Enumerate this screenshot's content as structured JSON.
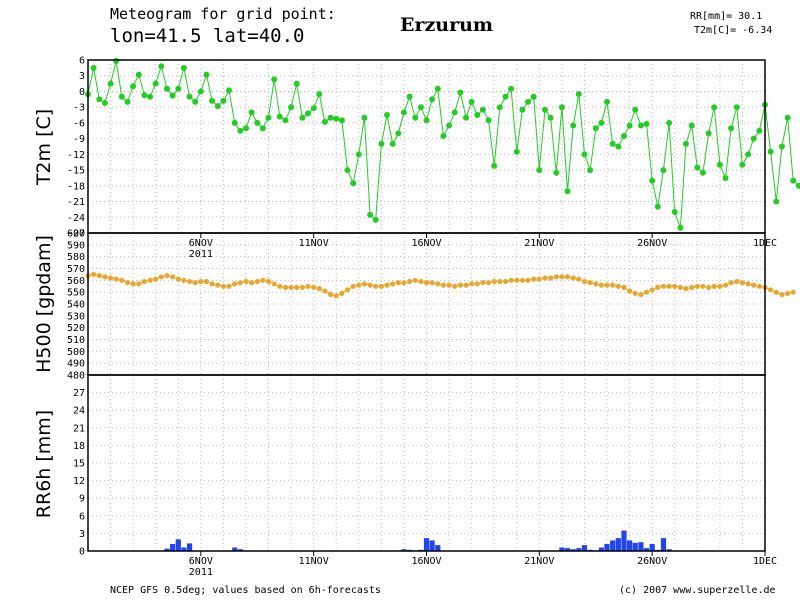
{
  "header": {
    "line1": "Meteogram for grid point:",
    "line2": "lon=41.5 lat=40.0",
    "city": "Erzurum",
    "rr_summary": "RR[mm]= 30.1",
    "t2m_summary": "T2m[C]= -6.34"
  },
  "footer": {
    "left": "NCEP GFS 0.5deg; values based on 6h-forecasts",
    "right": "(c) 2007 www.superzelle.de"
  },
  "colors": {
    "t2m": "#22cc22",
    "h500": "#e8a830",
    "rr": "#2244ee",
    "grid": "#bbbbbb"
  },
  "x_axis": {
    "start_day": 1,
    "end_day": 31,
    "ticks": [
      {
        "day": 6,
        "label": "6NOV",
        "sublabel": "2011"
      },
      {
        "day": 11,
        "label": "11NOV",
        "sublabel": ""
      },
      {
        "day": 16,
        "label": "16NOV",
        "sublabel": ""
      },
      {
        "day": 21,
        "label": "21NOV",
        "sublabel": ""
      },
      {
        "day": 26,
        "label": "26NOV",
        "sublabel": ""
      },
      {
        "day": 31,
        "label": "1DEC",
        "sublabel": ""
      }
    ],
    "bottom_ticks": [
      {
        "day": 6,
        "label": "6NOV",
        "sublabel": "2011"
      },
      {
        "day": 11,
        "label": "11NOV",
        "sublabel": ""
      },
      {
        "day": 16,
        "label": "16NOV",
        "sublabel": ""
      },
      {
        "day": 21,
        "label": "21NOV",
        "sublabel": ""
      },
      {
        "day": 26,
        "label": "26NOV",
        "sublabel": ""
      },
      {
        "day": 31,
        "label": "1DEC",
        "sublabel": ""
      }
    ]
  },
  "chart_data": [
    {
      "type": "line",
      "ylabel": "T2m [C]",
      "ylim": [
        -27,
        6
      ],
      "yticks": [
        6,
        3,
        0,
        -3,
        -6,
        -9,
        -12,
        -15,
        -18,
        -21,
        -24,
        -27
      ],
      "ytick_labels": [
        "6",
        "3",
        "0",
        "-3",
        "-6",
        "-9",
        "-12",
        "-15",
        "-18",
        "-21",
        "-24",
        "-27"
      ],
      "grid": true,
      "x_start_day": 1,
      "x_step_days": 0.25,
      "values": [
        -0.5,
        4.5,
        -1.5,
        -2.2,
        1.5,
        5.8,
        -1.0,
        -2.0,
        1.0,
        3.2,
        -0.7,
        -1.0,
        1.5,
        4.8,
        0.5,
        -0.8,
        0.5,
        4.5,
        -1.0,
        -2.0,
        0.0,
        3.2,
        -1.8,
        -2.8,
        -1.8,
        0.2,
        -6.0,
        -7.5,
        -7.0,
        -4.0,
        -6.0,
        -7.0,
        -5.0,
        2.3,
        -4.8,
        -5.5,
        -3.0,
        1.5,
        -5.0,
        -4.2,
        -3.2,
        -0.5,
        -5.8,
        -5.0,
        -5.2,
        -5.5,
        -15.0,
        -17.5,
        -12.0,
        -5.0,
        -23.5,
        -24.5,
        -10.0,
        -4.5,
        -10.0,
        -8.0,
        -4.0,
        -1.0,
        -5.0,
        -3.0,
        -5.5,
        -1.5,
        0.5,
        -8.5,
        -6.5,
        -4.0,
        -0.2,
        -5.0,
        -2.0,
        -4.5,
        -3.5,
        -5.5,
        -14.2,
        -3.0,
        -1.0,
        0.5,
        -11.5,
        -3.5,
        -2.0,
        -1.0,
        -15.0,
        -3.5,
        -5.0,
        -15.5,
        -3.0,
        -19.0,
        -6.5,
        -0.5,
        -12.0,
        -15.0,
        -7.0,
        -6.0,
        -2.0,
        -10.0,
        -10.5,
        -8.5,
        -6.5,
        -3.5,
        -6.5,
        -6.2,
        -17.0,
        -22.0,
        -15.0,
        -6.0,
        -23.0,
        -26.0,
        -10.0,
        -6.5,
        -14.5,
        -15.5,
        -8.0,
        -3.0,
        -14.0,
        -16.5,
        -7.0,
        -3.0,
        -14.0,
        -12.0,
        -9.0,
        -7.5,
        -2.5,
        -11.5,
        -21.0,
        -10.5,
        -5.0,
        -17.0,
        -18.0
      ]
    },
    {
      "type": "line",
      "ylabel": "H500 [gpdam]",
      "ylim": [
        480,
        600
      ],
      "yticks": [
        600,
        590,
        580,
        570,
        560,
        550,
        540,
        530,
        520,
        510,
        500,
        490,
        480
      ],
      "ytick_labels": [
        "600",
        "590",
        "580",
        "570",
        "560",
        "550",
        "540",
        "530",
        "520",
        "510",
        "500",
        "490",
        "480"
      ],
      "grid": true,
      "x_start_day": 1,
      "x_step_days": 0.25,
      "values": [
        564,
        565,
        564,
        563,
        562,
        561,
        560,
        558,
        557,
        557,
        559,
        560,
        561,
        563,
        564,
        563,
        561,
        560,
        559,
        558,
        559,
        559,
        557,
        556,
        555,
        555,
        557,
        558,
        559,
        558,
        559,
        560,
        559,
        557,
        555,
        554,
        554,
        554,
        554,
        555,
        554,
        553,
        551,
        548,
        547,
        549,
        552,
        555,
        556,
        557,
        556,
        555,
        555,
        556,
        557,
        558,
        558,
        559,
        560,
        559,
        558,
        558,
        557,
        556,
        556,
        555,
        556,
        556,
        557,
        557,
        558,
        558,
        559,
        559,
        559,
        560,
        560,
        560,
        560,
        561,
        561,
        562,
        562,
        563,
        563,
        563,
        562,
        561,
        559,
        558,
        557,
        556,
        556,
        556,
        555,
        554,
        551,
        549,
        548,
        550,
        552,
        554,
        555,
        555,
        555,
        554,
        553,
        554,
        555,
        555,
        554,
        555,
        555,
        556,
        558,
        559,
        558,
        557,
        556,
        555,
        554,
        552,
        550,
        548,
        549,
        550
      ]
    },
    {
      "type": "bar",
      "ylabel": "RR6h [mm]",
      "ylim": [
        0,
        30
      ],
      "yticks": [
        0,
        3,
        6,
        9,
        12,
        15,
        18,
        21,
        24,
        27,
        30
      ],
      "ytick_labels": [
        "0",
        "3",
        "6",
        "9",
        "12",
        "15",
        "18",
        "21",
        "24",
        "27",
        ""
      ],
      "grid": true,
      "x_start_day": 1,
      "x_step_days": 0.25,
      "values": [
        0,
        0,
        0,
        0,
        0,
        0,
        0,
        0,
        0,
        0,
        0,
        0,
        0,
        0,
        0.4,
        1.2,
        2.0,
        0.6,
        1.3,
        0,
        0,
        0,
        0,
        0,
        0,
        0,
        0.6,
        0.3,
        0,
        0,
        0,
        0,
        0,
        0,
        0,
        0,
        0,
        0,
        0,
        0,
        0,
        0,
        0,
        0,
        0,
        0,
        0,
        0,
        0,
        0,
        0,
        0,
        0,
        0,
        0,
        0,
        0.3,
        0.2,
        0.1,
        0.2,
        2.2,
        1.8,
        1.0,
        0,
        0,
        0,
        0,
        0,
        0,
        0,
        0,
        0,
        0,
        0,
        0,
        0,
        0,
        0,
        0,
        0,
        0,
        0,
        0,
        0,
        0.6,
        0.5,
        0.3,
        0.5,
        1.0,
        0.2,
        0.1,
        0.6,
        1.2,
        1.8,
        2.2,
        3.5,
        1.8,
        1.4,
        1.5,
        0.5,
        1.2,
        0.2,
        2.2,
        0.3,
        0,
        0,
        0,
        0,
        0,
        0,
        0,
        0,
        0,
        0,
        0,
        0,
        0,
        0,
        0,
        0,
        0,
        0,
        0,
        0,
        0,
        0,
        0,
        0,
        0,
        0,
        0,
        0,
        0,
        0,
        0,
        0,
        0,
        0,
        0,
        0,
        0,
        0,
        0,
        0,
        0,
        0,
        0,
        0,
        0,
        0,
        0,
        0,
        0,
        0,
        0,
        0,
        0,
        0,
        0,
        0,
        0,
        0,
        0,
        0,
        0,
        0,
        0,
        0,
        0,
        0,
        0,
        0,
        0,
        0,
        0,
        0,
        0,
        0,
        0,
        0.6,
        0.3,
        0.2,
        0,
        0,
        0,
        0,
        0,
        0,
        0,
        0,
        0,
        0,
        0,
        0,
        0,
        0,
        0,
        0,
        0,
        0,
        0,
        0,
        0,
        0,
        0,
        0,
        0,
        0,
        0,
        0,
        0,
        0,
        0,
        0,
        0,
        0,
        0,
        0,
        0,
        0,
        0,
        0,
        0,
        0,
        0,
        0,
        0,
        0,
        0,
        0,
        0,
        0,
        0,
        0,
        0,
        0,
        0,
        0,
        0,
        0,
        0,
        0,
        0,
        0,
        0,
        0,
        0,
        0,
        0,
        0,
        0,
        0,
        0
      ]
    }
  ]
}
